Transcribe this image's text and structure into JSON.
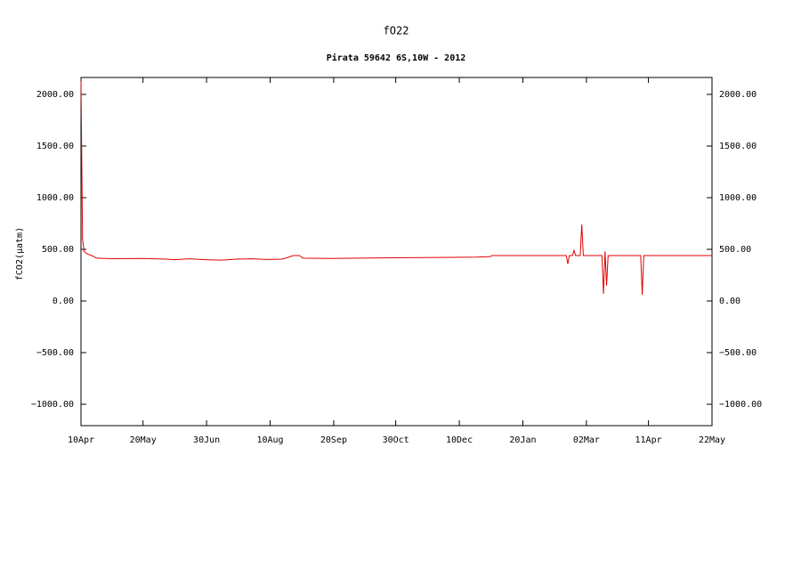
{
  "chart_data": {
    "type": "line",
    "title": "fO22",
    "subtitle": "Pirata 59642 6S,10W - 2012",
    "y_label": "fCO2(μatm)",
    "x": [
      0,
      1,
      2,
      4,
      7,
      10,
      20,
      40,
      55,
      60,
      70,
      80,
      90,
      95,
      100,
      110,
      120,
      130,
      137,
      141,
      143,
      160,
      180,
      200,
      220,
      240,
      255,
      264,
      265,
      313,
      314,
      315,
      317,
      318,
      319,
      322,
      323,
      324,
      336,
      337,
      338,
      339,
      340,
      361,
      362,
      363,
      407
    ],
    "series": [
      {
        "color": "#e00000",
        "values": [
          2130,
          600,
          480,
          455,
          440,
          415,
          410,
          412,
          405,
          400,
          408,
          400,
          395,
          400,
          405,
          408,
          402,
          405,
          440,
          440,
          415,
          412,
          415,
          418,
          420,
          422,
          425,
          430,
          440,
          440,
          360,
          440,
          440,
          490,
          440,
          440,
          740,
          440,
          440,
          70,
          480,
          150,
          440,
          440,
          60,
          440,
          440
        ]
      }
    ],
    "xlim": [
      0,
      407
    ],
    "xticks": [
      {
        "value": 0,
        "label": "10Apr"
      },
      {
        "value": 40,
        "label": "20May"
      },
      {
        "value": 81,
        "label": "30Jun"
      },
      {
        "value": 122,
        "label": "10Aug"
      },
      {
        "value": 163,
        "label": "20Sep"
      },
      {
        "value": 203,
        "label": "30Oct"
      },
      {
        "value": 244,
        "label": "10Dec"
      },
      {
        "value": 285,
        "label": "20Jan"
      },
      {
        "value": 326,
        "label": "02Mar"
      },
      {
        "value": 366,
        "label": "11Apr"
      },
      {
        "value": 407,
        "label": "22May"
      }
    ],
    "ylim": [
      -1207,
      2164
    ],
    "yticks": [
      {
        "value": -1000,
        "label": "−1000.00"
      },
      {
        "value": -500,
        "label": "−500.00"
      },
      {
        "value": 0,
        "label": "0.00"
      },
      {
        "value": 500,
        "label": "500.00"
      },
      {
        "value": 1000,
        "label": "1000.00"
      },
      {
        "value": 1500,
        "label": "1500.00"
      },
      {
        "value": 2000,
        "label": "2000.00"
      }
    ]
  }
}
